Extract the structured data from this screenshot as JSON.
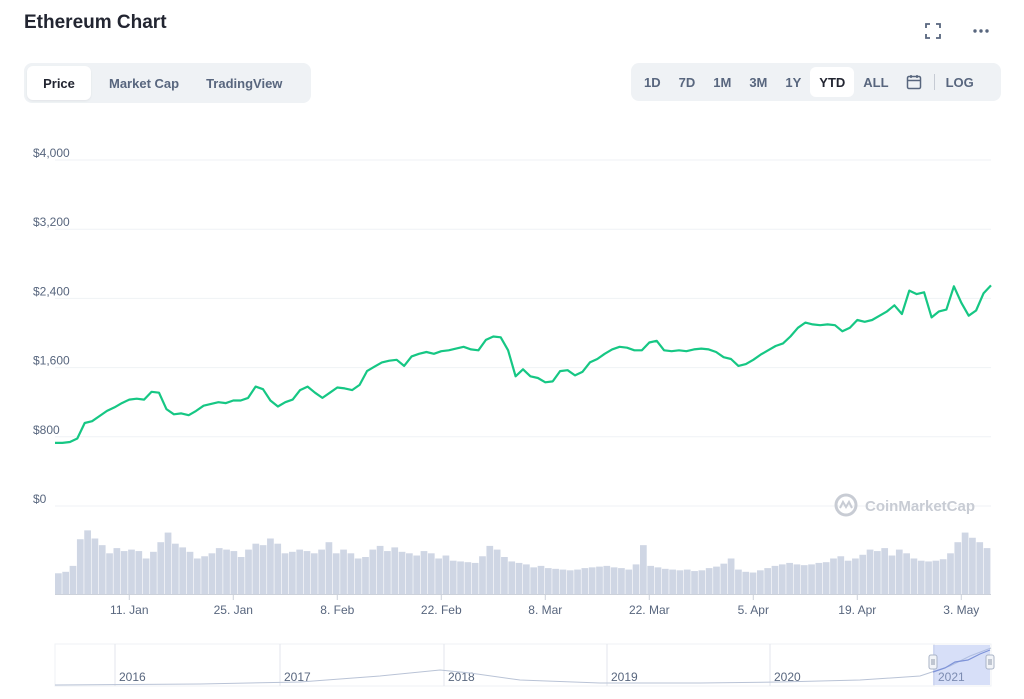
{
  "header": {
    "title": "Ethereum Chart",
    "fullscreen_icon": "fullscreen-icon",
    "more_icon": "more-horizontal-icon"
  },
  "tabs": [
    {
      "label": "Price",
      "active": true
    },
    {
      "label": "Market Cap",
      "active": false
    },
    {
      "label": "TradingView",
      "active": false
    }
  ],
  "ranges": [
    {
      "label": "1D",
      "active": false
    },
    {
      "label": "7D",
      "active": false
    },
    {
      "label": "1M",
      "active": false
    },
    {
      "label": "3M",
      "active": false
    },
    {
      "label": "1Y",
      "active": false
    },
    {
      "label": "YTD",
      "active": true
    },
    {
      "label": "ALL",
      "active": false
    }
  ],
  "calendar_icon": "calendar-icon",
  "log_label": "LOG",
  "watermark": "CoinMarketCap",
  "colors": {
    "line": "#16c784",
    "volume": "#cfd6e4",
    "grid": "#eff2f5",
    "axis_text": "#58667e"
  },
  "chart_data": {
    "type": "line",
    "title": "",
    "xlabel": "",
    "ylabel": "",
    "ylim": [
      0,
      4000
    ],
    "yticks": [
      "$4,000",
      "$3,200",
      "$2,400",
      "$1,600",
      "$800",
      "$0"
    ],
    "ytick_values": [
      4000,
      3200,
      2400,
      1600,
      800,
      0
    ],
    "xticks": [
      "11. Jan",
      "25. Jan",
      "8. Feb",
      "22. Feb",
      "8. Mar",
      "22. Mar",
      "5. Apr",
      "19. Apr",
      "3. May"
    ],
    "xtick_days": [
      10,
      24,
      38,
      52,
      66,
      80,
      94,
      108,
      122
    ],
    "x_range_days": [
      0,
      126
    ],
    "grid": true,
    "series": [
      {
        "x": [
          0,
          1,
          2,
          3,
          4,
          5,
          6,
          7,
          8,
          9,
          10,
          11,
          12,
          13,
          14,
          15,
          16,
          17,
          18,
          19,
          20,
          21,
          22,
          23,
          24,
          25,
          26,
          27,
          28,
          29,
          30,
          31,
          32,
          33,
          34,
          35,
          36,
          37,
          38,
          39,
          40,
          41,
          42,
          43,
          44,
          45,
          46,
          47,
          48,
          49,
          50,
          51,
          52,
          53,
          54,
          55,
          56,
          57,
          58,
          59,
          60,
          61,
          62,
          63,
          64,
          65,
          66,
          67,
          68,
          69,
          70,
          71,
          72,
          73,
          74,
          75,
          76,
          77,
          78,
          79,
          80,
          81,
          82,
          83,
          84,
          85,
          86,
          87,
          88,
          89,
          90,
          91,
          92,
          93,
          94,
          95,
          96,
          97,
          98,
          99,
          100,
          101,
          102,
          103,
          104,
          105,
          106,
          107,
          108,
          109,
          110,
          111,
          112,
          113,
          114,
          115,
          116,
          117,
          118,
          119,
          120,
          121,
          122,
          123,
          124,
          125,
          126
        ],
        "values": [
          730,
          730,
          740,
          780,
          960,
          980,
          1040,
          1100,
          1140,
          1190,
          1230,
          1240,
          1230,
          1320,
          1310,
          1120,
          1060,
          1070,
          1050,
          1100,
          1160,
          1180,
          1200,
          1190,
          1220,
          1220,
          1250,
          1380,
          1350,
          1220,
          1150,
          1200,
          1230,
          1340,
          1380,
          1310,
          1250,
          1310,
          1370,
          1360,
          1340,
          1400,
          1560,
          1610,
          1660,
          1680,
          1690,
          1620,
          1730,
          1760,
          1780,
          1760,
          1790,
          1800,
          1820,
          1840,
          1810,
          1800,
          1920,
          1960,
          1950,
          1800,
          1500,
          1580,
          1500,
          1480,
          1430,
          1440,
          1560,
          1570,
          1510,
          1550,
          1660,
          1700,
          1760,
          1810,
          1840,
          1830,
          1800,
          1800,
          1890,
          1910,
          1800,
          1790,
          1800,
          1790,
          1810,
          1820,
          1810,
          1780,
          1720,
          1700,
          1620,
          1640,
          1690,
          1750,
          1800,
          1850,
          1880,
          1960,
          2060,
          2120,
          2100,
          2090,
          2100,
          2090,
          2020,
          2060,
          2150,
          2130,
          2150,
          2200,
          2250,
          2320,
          2220,
          2490,
          2450,
          2470,
          2180,
          2250,
          2270,
          2540,
          2350,
          2200,
          2260,
          2460,
          2550
        ]
      }
    ],
    "volume": {
      "ylim": [
        0,
        1
      ],
      "values": [
        0.28,
        0.3,
        0.38,
        0.74,
        0.86,
        0.75,
        0.66,
        0.55,
        0.62,
        0.58,
        0.6,
        0.58,
        0.48,
        0.57,
        0.7,
        0.83,
        0.68,
        0.63,
        0.57,
        0.48,
        0.51,
        0.55,
        0.62,
        0.6,
        0.58,
        0.5,
        0.6,
        0.68,
        0.66,
        0.75,
        0.68,
        0.55,
        0.57,
        0.6,
        0.58,
        0.55,
        0.6,
        0.7,
        0.55,
        0.6,
        0.55,
        0.48,
        0.5,
        0.6,
        0.65,
        0.58,
        0.63,
        0.57,
        0.55,
        0.52,
        0.58,
        0.55,
        0.48,
        0.52,
        0.45,
        0.44,
        0.43,
        0.42,
        0.51,
        0.65,
        0.6,
        0.5,
        0.44,
        0.42,
        0.4,
        0.36,
        0.38,
        0.35,
        0.34,
        0.33,
        0.32,
        0.33,
        0.35,
        0.36,
        0.37,
        0.38,
        0.36,
        0.35,
        0.33,
        0.4,
        0.66,
        0.38,
        0.36,
        0.34,
        0.33,
        0.32,
        0.33,
        0.31,
        0.32,
        0.35,
        0.37,
        0.41,
        0.48,
        0.33,
        0.3,
        0.29,
        0.32,
        0.35,
        0.38,
        0.4,
        0.42,
        0.4,
        0.39,
        0.4,
        0.42,
        0.43,
        0.48,
        0.51,
        0.45,
        0.48,
        0.53,
        0.6,
        0.58,
        0.62,
        0.52,
        0.6,
        0.55,
        0.48,
        0.45,
        0.44,
        0.45,
        0.47,
        0.55,
        0.7,
        0.83,
        0.76,
        0.7,
        0.62
      ]
    },
    "navigator": {
      "labels": [
        "2016",
        "2017",
        "2018",
        "2019",
        "2020",
        "2021"
      ]
    }
  }
}
